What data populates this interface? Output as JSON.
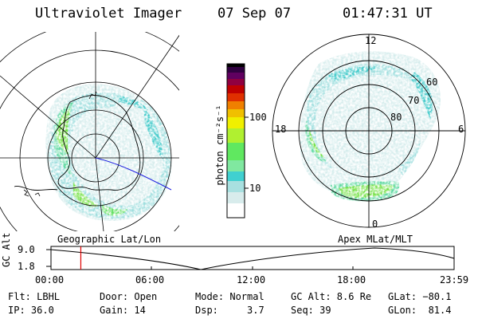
{
  "header": {
    "instrument": "Ultraviolet Imager",
    "date": "07 Sep 07",
    "time": "01:47:31 UT"
  },
  "left_panel": {
    "label": "Geographic Lat/Lon"
  },
  "right_panel": {
    "label": "Apex MLat/MLT",
    "mlt_labels": {
      "top": "12",
      "left": "18",
      "right": "6",
      "bottom": "0"
    },
    "lat_labels": [
      "60",
      "70",
      "80"
    ]
  },
  "colorbar": {
    "unit_label": "photon cm⁻²s⁻¹",
    "ticks": [
      "100",
      "10"
    ],
    "scale": "log",
    "colors": [
      "#ffffff",
      "#d8ecec",
      "#a8e0e0",
      "#40d0d0",
      "#60e860",
      "#b0f030",
      "#f0f000",
      "#f0c000",
      "#f08000",
      "#e03000",
      "#c00000",
      "#900040",
      "#600060",
      "#300040",
      "#000000"
    ]
  },
  "timeline": {
    "y_label": "GC Alt",
    "y_ticks": [
      "9.0",
      "1.8"
    ],
    "x_ticks": [
      "00:00",
      "06:00",
      "12:00",
      "18:00",
      "23:59"
    ],
    "current_time_fraction": 0.074,
    "marker_color": "#e00000"
  },
  "footer": {
    "filter": "Flt: LBHL",
    "door": "Door: Open",
    "mode": "Mode: Normal",
    "gc_alt": "GC Alt: 8.6 Re",
    "glat": "GLat: −80.1",
    "ip": "IP: 36.0",
    "gain": "Gain: 14",
    "dsp": "Dsp:     3.7",
    "seq": "Seq: 39",
    "glon": "GLon:  81.4"
  }
}
